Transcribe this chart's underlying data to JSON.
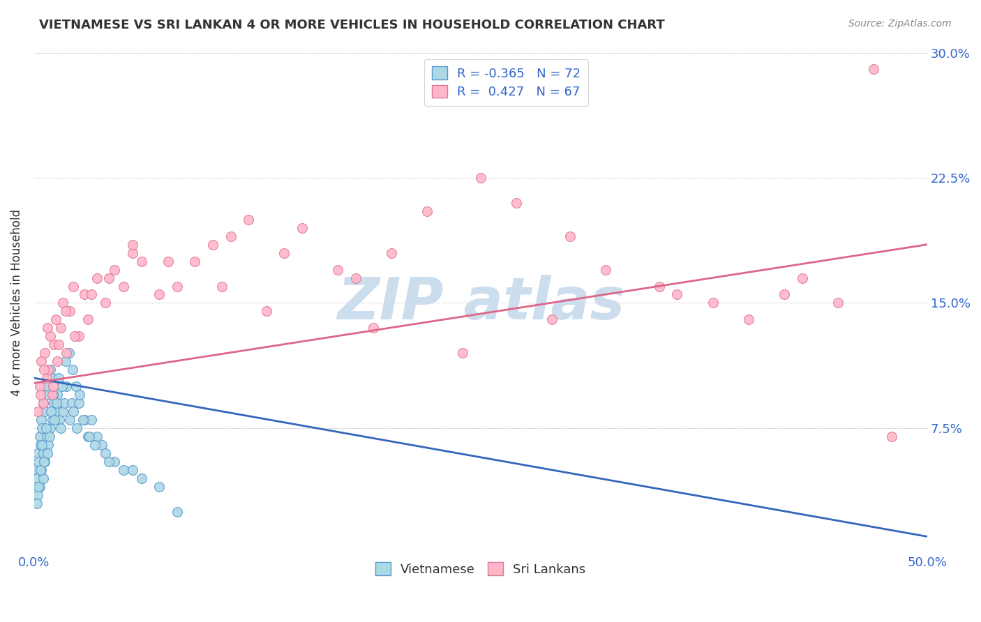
{
  "title": "VIETNAMESE VS SRI LANKAN 4 OR MORE VEHICLES IN HOUSEHOLD CORRELATION CHART",
  "source": "Source: ZipAtlas.com",
  "ylabel": "4 or more Vehicles in Household",
  "xlim": [
    0,
    50
  ],
  "ylim": [
    0,
    30
  ],
  "viet_color": "#ADD8E6",
  "viet_edge_color": "#5599CC",
  "srilanka_color": "#FFB6C8",
  "srilanka_edge_color": "#DD7799",
  "viet_line_color": "#3366BB",
  "srilanka_line_color": "#DD6688",
  "watermark_color": "#CCDDEE",
  "background_color": "#FFFFFF",
  "viet_R": -0.365,
  "viet_N": 72,
  "srilanka_R": 0.427,
  "srilanka_N": 67,
  "viet_line_x0": 0,
  "viet_line_y0": 10.5,
  "viet_line_x1": 50,
  "viet_line_y1": 1.0,
  "srilanka_line_x0": 0,
  "srilanka_line_y0": 10.2,
  "srilanka_line_x1": 50,
  "srilanka_line_y1": 18.5,
  "viet_x": [
    0.1,
    0.15,
    0.2,
    0.2,
    0.25,
    0.3,
    0.3,
    0.35,
    0.4,
    0.4,
    0.45,
    0.5,
    0.5,
    0.5,
    0.6,
    0.6,
    0.7,
    0.7,
    0.8,
    0.8,
    0.9,
    0.9,
    1.0,
    1.0,
    1.1,
    1.2,
    1.3,
    1.4,
    1.5,
    1.6,
    1.7,
    1.8,
    2.0,
    2.1,
    2.2,
    2.4,
    2.5,
    2.8,
    3.0,
    3.2,
    3.5,
    3.8,
    4.0,
    4.5,
    5.0,
    6.0,
    7.0,
    0.15,
    0.25,
    0.35,
    0.45,
    0.55,
    0.65,
    0.75,
    0.85,
    0.95,
    1.05,
    1.15,
    1.25,
    1.35,
    1.55,
    1.75,
    1.95,
    2.15,
    2.35,
    2.55,
    2.75,
    3.1,
    3.4,
    4.2,
    5.5,
    8.0
  ],
  "viet_y": [
    5.0,
    4.5,
    3.5,
    6.0,
    5.5,
    4.0,
    7.0,
    6.5,
    5.0,
    8.0,
    7.5,
    4.5,
    6.0,
    9.0,
    5.5,
    8.5,
    7.0,
    10.0,
    6.5,
    9.5,
    7.5,
    11.0,
    8.0,
    10.5,
    9.0,
    8.5,
    9.5,
    8.0,
    7.5,
    8.5,
    9.0,
    10.0,
    8.0,
    9.0,
    8.5,
    7.5,
    9.0,
    8.0,
    7.0,
    8.0,
    7.0,
    6.5,
    6.0,
    5.5,
    5.0,
    4.5,
    4.0,
    3.0,
    4.0,
    5.0,
    6.5,
    5.5,
    7.5,
    6.0,
    7.0,
    8.5,
    9.5,
    8.0,
    9.0,
    10.5,
    10.0,
    11.5,
    12.0,
    11.0,
    10.0,
    9.5,
    8.0,
    7.0,
    6.5,
    5.5,
    5.0,
    2.5
  ],
  "sri_x": [
    0.2,
    0.3,
    0.4,
    0.5,
    0.6,
    0.7,
    0.8,
    0.9,
    1.0,
    1.1,
    1.2,
    1.3,
    1.5,
    1.6,
    1.8,
    2.0,
    2.2,
    2.5,
    2.8,
    3.0,
    3.5,
    4.0,
    4.5,
    5.0,
    5.5,
    6.0,
    7.0,
    8.0,
    9.0,
    10.0,
    11.0,
    12.0,
    14.0,
    15.0,
    17.0,
    18.0,
    20.0,
    22.0,
    25.0,
    27.0,
    30.0,
    32.0,
    35.0,
    38.0,
    40.0,
    42.0,
    45.0,
    0.35,
    0.55,
    0.75,
    1.05,
    1.35,
    1.75,
    2.25,
    3.2,
    4.2,
    5.5,
    7.5,
    10.5,
    13.0,
    19.0,
    24.0,
    29.0,
    36.0,
    43.0,
    47.0,
    48.0
  ],
  "sri_y": [
    8.5,
    10.0,
    11.5,
    9.0,
    12.0,
    10.5,
    11.0,
    13.0,
    9.5,
    12.5,
    14.0,
    11.5,
    13.5,
    15.0,
    12.0,
    14.5,
    16.0,
    13.0,
    15.5,
    14.0,
    16.5,
    15.0,
    17.0,
    16.0,
    18.0,
    17.5,
    15.5,
    16.0,
    17.5,
    18.5,
    19.0,
    20.0,
    18.0,
    19.5,
    17.0,
    16.5,
    18.0,
    20.5,
    22.5,
    21.0,
    19.0,
    17.0,
    16.0,
    15.0,
    14.0,
    15.5,
    15.0,
    9.5,
    11.0,
    13.5,
    10.0,
    12.5,
    14.5,
    13.0,
    15.5,
    16.5,
    18.5,
    17.5,
    16.0,
    14.5,
    13.5,
    12.0,
    14.0,
    15.5,
    16.5,
    29.0,
    7.0
  ]
}
